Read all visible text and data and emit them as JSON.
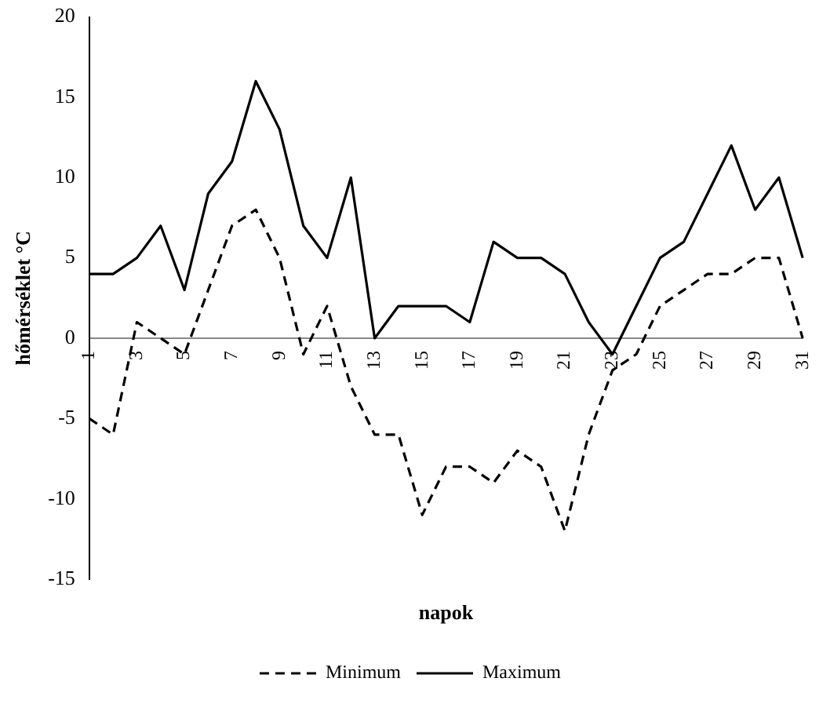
{
  "chart_data": {
    "type": "line",
    "xlabel": "napok",
    "ylabel": "hőmérséklet °C",
    "categories": [
      "1",
      null,
      "3",
      null,
      "5",
      null,
      "7",
      null,
      "9",
      null,
      "11",
      null,
      "13",
      null,
      "15",
      null,
      "17",
      null,
      "19",
      null,
      "21",
      null,
      "23",
      null,
      "25",
      null,
      "27",
      null,
      "29",
      null,
      "31"
    ],
    "series": [
      {
        "name": "Minimum",
        "color": "#000000",
        "line_style": "dashed",
        "values": [
          -5,
          -6,
          1,
          0,
          -1,
          3,
          7,
          8,
          5,
          -1,
          2,
          -3,
          -6,
          -6,
          -11,
          -8,
          -8,
          -9,
          -7,
          -8,
          -12,
          -6,
          -2,
          -1,
          2,
          3,
          4,
          4,
          5,
          5,
          0
        ]
      },
      {
        "name": "Maximum",
        "color": "#000000",
        "line_style": "solid",
        "values": [
          4,
          4,
          5,
          7,
          3,
          9,
          11,
          16,
          13,
          7,
          5,
          10,
          0,
          2,
          2,
          2,
          1,
          6,
          5,
          5,
          4,
          1,
          -1,
          2,
          5,
          6,
          9,
          12,
          8,
          10,
          5
        ]
      }
    ],
    "ylim": [
      -15,
      20
    ],
    "yticks": [
      -15,
      -10,
      -5,
      0,
      5,
      10,
      15,
      20
    ],
    "grid": false,
    "legend": "bottom",
    "marker": "none"
  }
}
